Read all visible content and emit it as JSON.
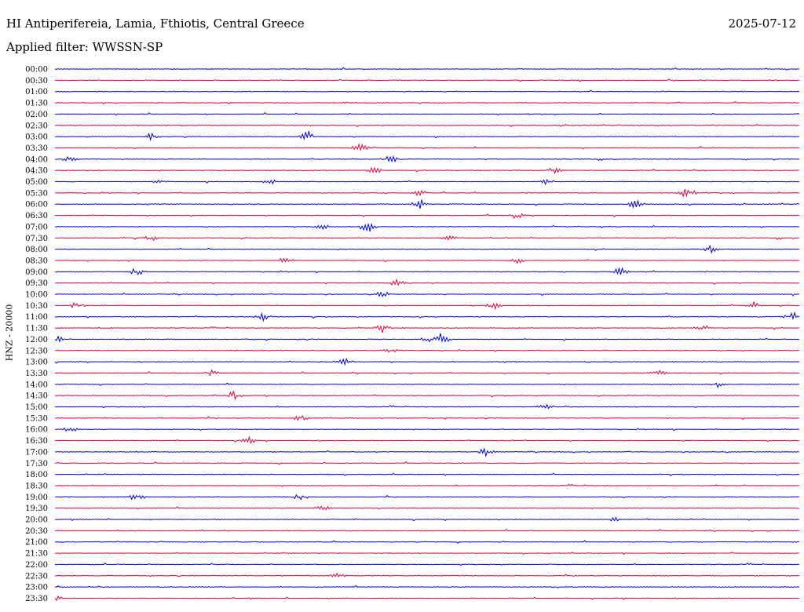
{
  "header": {
    "title": "HI Antiperifereia, Lamia, Fthiotis, Central Greece",
    "date": "2025-07-12",
    "filter": "Applied filter: WWSSN-SP"
  },
  "colors": {
    "blue": "#0000e6",
    "red": "#e6003a",
    "background": "#ffffff"
  },
  "chart_data": {
    "type": "line",
    "title": "HI Antiperifereia, Lamia, Fthiotis, Central Greece",
    "ylabel": "HNZ - 20000",
    "xlabel": "",
    "grid": false,
    "series_colors": [
      "blue",
      "red"
    ],
    "rows": [
      {
        "time": "00:00",
        "events": []
      },
      {
        "time": "00:30",
        "events": []
      },
      {
        "time": "01:00",
        "events": []
      },
      {
        "time": "01:30",
        "events": []
      },
      {
        "time": "02:00",
        "events": []
      },
      {
        "time": "02:30",
        "events": []
      },
      {
        "time": "03:00",
        "events": [
          [
            0.13,
            5
          ],
          [
            0.34,
            9
          ]
        ]
      },
      {
        "time": "03:30",
        "events": [
          [
            0.41,
            6
          ]
        ]
      },
      {
        "time": "04:00",
        "events": [
          [
            0.45,
            7
          ],
          [
            0.02,
            3.5
          ]
        ]
      },
      {
        "time": "04:30",
        "events": [
          [
            0.43,
            5
          ],
          [
            0.67,
            4
          ]
        ]
      },
      {
        "time": "05:00",
        "events": [
          [
            0.14,
            4
          ],
          [
            0.29,
            4
          ],
          [
            0.66,
            4
          ]
        ]
      },
      {
        "time": "05:30",
        "events": [
          [
            0.49,
            4
          ],
          [
            0.85,
            8
          ]
        ]
      },
      {
        "time": "06:00",
        "events": [
          [
            0.49,
            7
          ],
          [
            0.78,
            6
          ]
        ]
      },
      {
        "time": "06:30",
        "events": [
          [
            0.62,
            5
          ]
        ]
      },
      {
        "time": "07:00",
        "events": [
          [
            0.42,
            8
          ],
          [
            0.36,
            4
          ]
        ]
      },
      {
        "time": "07:30",
        "events": [
          [
            0.13,
            4
          ],
          [
            0.53,
            4
          ]
        ]
      },
      {
        "time": "08:00",
        "events": [
          [
            0.88,
            6
          ]
        ]
      },
      {
        "time": "08:30",
        "events": [
          [
            0.31,
            5
          ],
          [
            0.62,
            5
          ]
        ]
      },
      {
        "time": "09:00",
        "events": [
          [
            0.11,
            5
          ],
          [
            0.76,
            6
          ]
        ]
      },
      {
        "time": "09:30",
        "events": [
          [
            0.46,
            5
          ]
        ]
      },
      {
        "time": "10:00",
        "events": [
          [
            0.44,
            4
          ]
        ]
      },
      {
        "time": "10:30",
        "events": [
          [
            0.03,
            5
          ],
          [
            0.59,
            5
          ],
          [
            0.94,
            5
          ]
        ]
      },
      {
        "time": "11:00",
        "events": [
          [
            0.28,
            6
          ],
          [
            0.99,
            7
          ]
        ]
      },
      {
        "time": "11:30",
        "events": [
          [
            0.44,
            6
          ],
          [
            0.87,
            5
          ]
        ]
      },
      {
        "time": "12:00",
        "events": [
          [
            0.0,
            6
          ],
          [
            0.52,
            9
          ],
          [
            0.5,
            4
          ]
        ]
      },
      {
        "time": "12:30",
        "events": [
          [
            0.45,
            4
          ]
        ]
      },
      {
        "time": "13:00",
        "events": [
          [
            0.39,
            5
          ]
        ]
      },
      {
        "time": "13:30",
        "events": [
          [
            0.21,
            4
          ],
          [
            0.81,
            5
          ]
        ]
      },
      {
        "time": "14:00",
        "events": [
          [
            0.89,
            4
          ]
        ]
      },
      {
        "time": "14:30",
        "events": [
          [
            0.24,
            6
          ]
        ]
      },
      {
        "time": "15:00",
        "events": [
          [
            0.66,
            4
          ]
        ]
      },
      {
        "time": "15:30",
        "events": [
          [
            0.33,
            4
          ]
        ]
      },
      {
        "time": "16:00",
        "events": [
          [
            0.02,
            4
          ]
        ]
      },
      {
        "time": "16:30",
        "events": [
          [
            0.26,
            5
          ]
        ]
      },
      {
        "time": "17:00",
        "events": [
          [
            0.58,
            7
          ]
        ]
      },
      {
        "time": "17:30",
        "events": []
      },
      {
        "time": "18:00",
        "events": []
      },
      {
        "time": "18:30",
        "events": []
      },
      {
        "time": "19:00",
        "events": [
          [
            0.11,
            6
          ],
          [
            0.33,
            5
          ]
        ]
      },
      {
        "time": "19:30",
        "events": [
          [
            0.36,
            4
          ]
        ]
      },
      {
        "time": "20:00",
        "events": [
          [
            0.75,
            5
          ]
        ]
      },
      {
        "time": "20:30",
        "events": []
      },
      {
        "time": "21:00",
        "events": []
      },
      {
        "time": "21:30",
        "events": []
      },
      {
        "time": "22:00",
        "events": []
      },
      {
        "time": "22:30",
        "events": [
          [
            0.38,
            4
          ]
        ]
      },
      {
        "time": "23:00",
        "events": []
      },
      {
        "time": "23:30",
        "events": [
          [
            0.0,
            4
          ]
        ]
      }
    ]
  }
}
